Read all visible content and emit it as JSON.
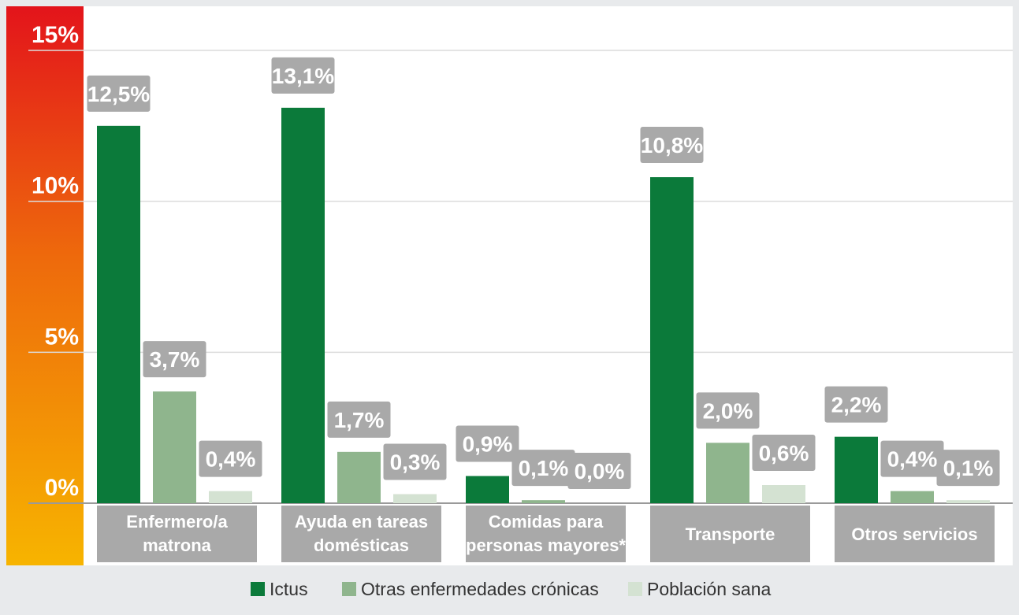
{
  "chart_data": {
    "type": "bar",
    "title": "",
    "xlabel": "",
    "ylabel": "",
    "ylim": [
      0,
      15
    ],
    "yticks": [
      {
        "value": 0,
        "label": "0%"
      },
      {
        "value": 5,
        "label": "5%"
      },
      {
        "value": 10,
        "label": "10%"
      },
      {
        "value": 15,
        "label": "15%"
      }
    ],
    "categories": [
      [
        "Enfermero/a",
        "matrona"
      ],
      [
        "Ayuda en tareas",
        "domésticas"
      ],
      [
        "Comidas para",
        "personas mayores*"
      ],
      [
        "Transporte"
      ],
      [
        "Otros servicios"
      ]
    ],
    "series": [
      {
        "name": "Ictus",
        "color": "#0b7a3a",
        "values": [
          12.5,
          13.1,
          0.9,
          10.8,
          2.2
        ],
        "labels": [
          "12,5%",
          "13,1%",
          "0,9%",
          "10,8%",
          "2,2%"
        ]
      },
      {
        "name": "Otras enfermedades crónicas",
        "color": "#8fb58d",
        "values": [
          3.7,
          1.7,
          0.1,
          2.0,
          0.4
        ],
        "labels": [
          "3,7%",
          "1,7%",
          "0,1%",
          "2,0%",
          "0,4%"
        ]
      },
      {
        "name": "Población sana",
        "color": "#d4e2d2",
        "values": [
          0.4,
          0.3,
          0.0,
          0.6,
          0.1
        ],
        "labels": [
          "0,4%",
          "0,3%",
          "0,0%",
          "0,6%",
          "0,1%"
        ]
      }
    ],
    "grid": true,
    "legend": "bottom",
    "axis_gradient": [
      "#e3141b",
      "#ee6a0c",
      "#f7b400"
    ]
  }
}
